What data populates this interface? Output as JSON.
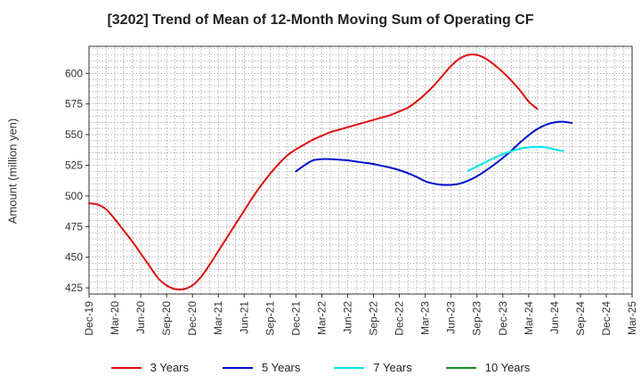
{
  "chart_data": {
    "type": "line",
    "title": "[3202]  Trend of Mean of 12-Month Moving Sum of Operating CF",
    "xlabel": "",
    "ylabel": "Amount (million yen)",
    "ylim": [
      420,
      622
    ],
    "yticks": [
      425,
      450,
      475,
      500,
      525,
      550,
      575,
      600
    ],
    "x_ticks": [
      "Dec-19",
      "Mar-20",
      "Jun-20",
      "Sep-20",
      "Dec-20",
      "Mar-21",
      "Jun-21",
      "Sep-21",
      "Dec-21",
      "Mar-22",
      "Jun-22",
      "Sep-22",
      "Dec-22",
      "Mar-23",
      "Jun-23",
      "Sep-23",
      "Dec-23",
      "Mar-24",
      "Jun-24",
      "Sep-24",
      "Dec-24",
      "Mar-25"
    ],
    "grid": true,
    "legend_position": "bottom",
    "series": [
      {
        "name": "3 Years",
        "color": "#e01010",
        "start_index": 0,
        "values": [
          494,
          493,
          489,
          481,
          472,
          463,
          453,
          443,
          433,
          427,
          424,
          424,
          427,
          434,
          444,
          455,
          466,
          477,
          488,
          499,
          509,
          518,
          526,
          533,
          538,
          542,
          546,
          549,
          552,
          554,
          556,
          558,
          560,
          562,
          564,
          566,
          569,
          572,
          577,
          583,
          590,
          598,
          606,
          612,
          615,
          615,
          612,
          607,
          601,
          594,
          586,
          577,
          571
        ]
      },
      {
        "name": "5 Years",
        "color": "#0010cc",
        "start_index": 24,
        "values": [
          520,
          525,
          529,
          530,
          530,
          529.5,
          529,
          528,
          527,
          526,
          524.5,
          523,
          521,
          518.5,
          515.5,
          512,
          510,
          509,
          509,
          510,
          512.5,
          516,
          520.5,
          525.5,
          531,
          537,
          543.5,
          549.5,
          554.5,
          558,
          560,
          560.5,
          559.5
        ]
      },
      {
        "name": "7 Years",
        "color": "#00e5ee",
        "start_index": 44,
        "values": [
          520.5,
          524,
          527.5,
          531,
          534,
          536.5,
          538.5,
          539.5,
          540,
          539.5,
          538,
          536.5
        ]
      },
      {
        "name": "10 Years",
        "color": "#1a8a1a",
        "start_index": 0,
        "values": []
      }
    ]
  }
}
